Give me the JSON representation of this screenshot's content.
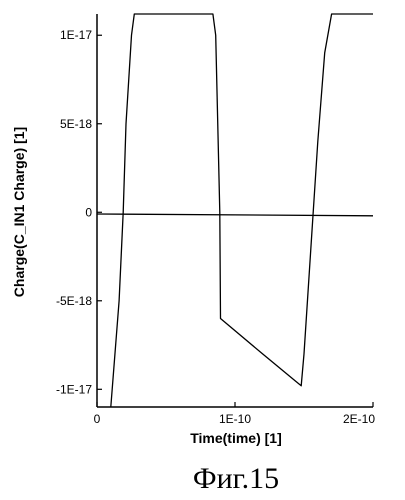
{
  "chart_data": {
    "type": "line",
    "title": "",
    "xlabel": "Time(time) [1]",
    "ylabel": "Charge(C_IN1 Charge) [1]",
    "xlim": [
      0,
      2e-10
    ],
    "ylim": [
      -1.1e-17,
      1.12e-17
    ],
    "x_ticks": [
      {
        "value": 0,
        "label": "0"
      },
      {
        "value": 1e-10,
        "label": "1E-10"
      },
      {
        "value": 2e-10,
        "label": "2E-10"
      }
    ],
    "y_ticks": [
      {
        "value": 1e-17,
        "label": "1E-17"
      },
      {
        "value": 5e-18,
        "label": "5E-18"
      },
      {
        "value": 0,
        "label": "0"
      },
      {
        "value": -5e-18,
        "label": "-5E-18"
      },
      {
        "value": -1e-17,
        "label": "-1E-17"
      }
    ],
    "grid": false,
    "legend": "none",
    "series": [
      {
        "color": "#000000",
        "x": [
          1e-11,
          1.6e-11,
          1.9e-11,
          2.1e-11,
          2.5e-11,
          2.7e-11,
          8.4e-11,
          8.6e-11,
          8.9e-11,
          8.95e-11,
          1.2e-10,
          1.48e-10,
          1.5e-10,
          1.55e-10,
          1.6e-10,
          1.65e-10,
          1.7e-10,
          2e-10
        ],
        "values": [
          -1.1e-17,
          -5e-18,
          0,
          5e-18,
          1e-17,
          1.12e-17,
          1.12e-17,
          1e-17,
          0,
          -6e-18,
          -8e-18,
          -9.8e-18,
          -8e-18,
          -2e-18,
          4e-18,
          9e-18,
          1.12e-17,
          1.12e-17
        ]
      },
      {
        "color": "#000000",
        "x": [
          0,
          2e-10
        ],
        "values": [
          -1e-19,
          -2e-19
        ]
      }
    ]
  },
  "figure_caption": "Фиг.15"
}
